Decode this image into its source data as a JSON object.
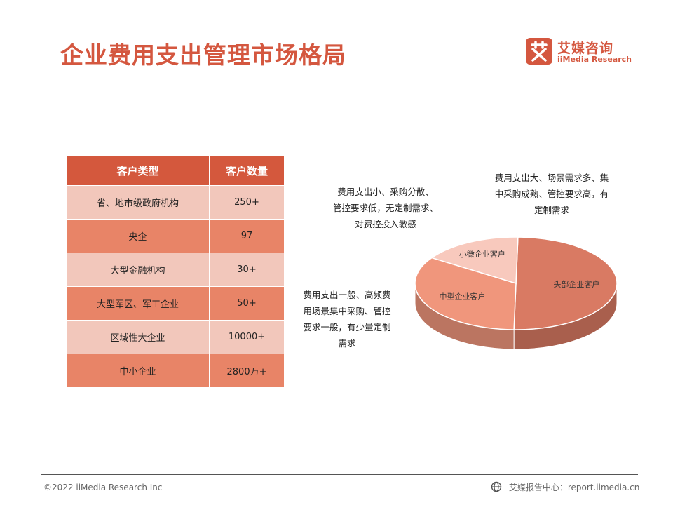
{
  "page": {
    "title": "企业费用支出管理市场格局"
  },
  "logo": {
    "mark": "艾",
    "name_cn": "艾媒咨询",
    "name_en": "iiMedia Research"
  },
  "table": {
    "headers": [
      "客户类型",
      "客户数量"
    ],
    "rows": [
      [
        "省、地市级政府机构",
        "250+"
      ],
      [
        "央企",
        "97"
      ],
      [
        "大型金融机构",
        "30+"
      ],
      [
        "大型军区、军工企业",
        "50+"
      ],
      [
        "区域性大企业",
        "10000+"
      ],
      [
        "中小企业",
        "2800万+"
      ]
    ]
  },
  "notes": {
    "small": [
      "费用支出小、采购分散、",
      "管控要求低，无定制需求、",
      "对费控投入敏感"
    ],
    "large": [
      "费用支出大、场景需求多、集",
      "中采购成熟、管控要求高，有",
      "定制需求"
    ],
    "medium": [
      "费用支出一般、高频费",
      "用场景集中采购、管控",
      "要求一般，有少量定制",
      "需求"
    ]
  },
  "chart_data": {
    "type": "pie",
    "style": "3d",
    "title": "",
    "slices": [
      {
        "label": "头部企业客户",
        "value": 50,
        "color": "#d97a63"
      },
      {
        "label": "中型企业客户",
        "value": 34,
        "color": "#f0967c"
      },
      {
        "label": "小微企业客户",
        "value": 16,
        "color": "#f8c9bd"
      }
    ]
  },
  "footer": {
    "copyright": "©2022  iiMedia Research  Inc",
    "source": "艾媒报告中心：report.iimedia.cn"
  }
}
